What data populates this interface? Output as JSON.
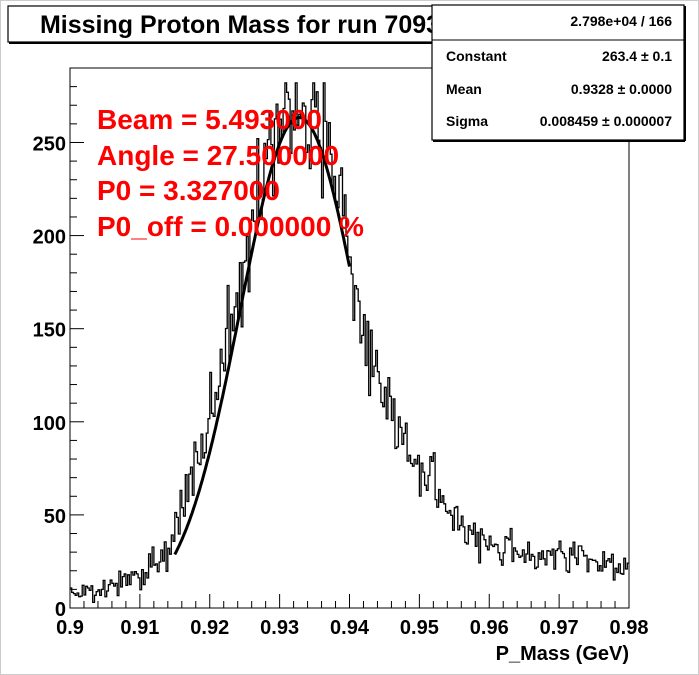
{
  "chart_data": {
    "type": "histogram",
    "title": "Missing Proton Mass for run 7093",
    "xlabel": "P_Mass (GeV)",
    "ylabel": "",
    "xlim": [
      0.9,
      0.98
    ],
    "ylim": [
      0,
      290
    ],
    "xticks": [
      0.9,
      0.91,
      0.92,
      0.93,
      0.94,
      0.95,
      0.96,
      0.97,
      0.98
    ],
    "xtick_labels": [
      "0.9",
      "0.91",
      "0.92",
      "0.93",
      "0.94",
      "0.95",
      "0.96",
      "0.97",
      "0.98"
    ],
    "yticks": [
      0,
      50,
      100,
      150,
      200,
      250
    ],
    "ytick_labels": [
      "0",
      "50",
      "100",
      "150",
      "200",
      "250"
    ],
    "grid": false,
    "histogram_profile": {
      "x": [
        0.9,
        0.905,
        0.91,
        0.914,
        0.918,
        0.922,
        0.926,
        0.929,
        0.932,
        0.934,
        0.936,
        0.938,
        0.94,
        0.943,
        0.946,
        0.95,
        0.955,
        0.96,
        0.965,
        0.97,
        0.975,
        0.98
      ],
      "y": [
        8,
        10,
        18,
        32,
        75,
        140,
        205,
        250,
        270,
        265,
        262,
        238,
        190,
        130,
        105,
        75,
        48,
        35,
        30,
        28,
        25,
        22
      ]
    },
    "fit_curve": {
      "x_range": [
        0.915,
        0.94
      ],
      "constant": 263.4,
      "mean": 0.9328,
      "sigma": 0.008459
    },
    "stats_box": {
      "header": "2.798e+04 / 166",
      "rows": [
        {
          "label": "Constant",
          "value": "263.4 ± 0.1"
        },
        {
          "label": "Mean",
          "value": "0.9328 ± 0.0000"
        },
        {
          "label": "Sigma",
          "value": "0.008459 ± 0.000007"
        }
      ]
    },
    "annotations": [
      "Beam = 5.493000",
      "Angle = 27.500000",
      "P0 = 3.327000",
      "P0_off = 0.000000 %"
    ],
    "colors": {
      "background": "#ffffff",
      "frame_bg": "#ffffff",
      "axis": "#000000",
      "histogram": "#000000",
      "fit": "#000000",
      "annotation": "#ff0000"
    }
  }
}
